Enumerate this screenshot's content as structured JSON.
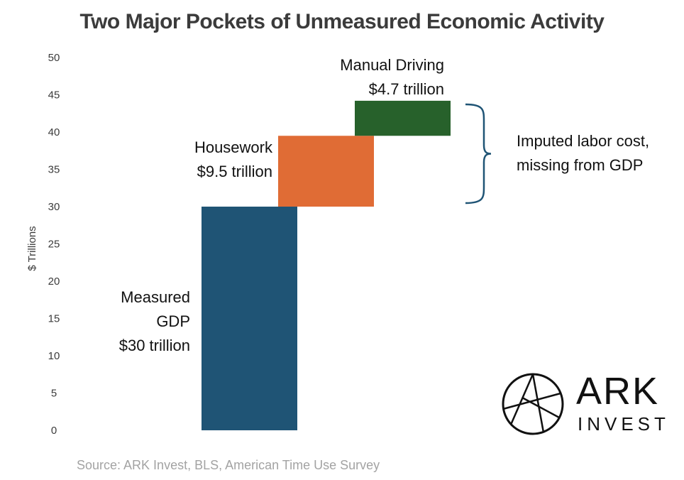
{
  "chart_data": {
    "type": "bar",
    "title": "Two Major Pockets of Unmeasured Economic Activity",
    "ylabel": "$ Trillions",
    "ylim": [
      0,
      50
    ],
    "yticks": [
      0,
      5,
      10,
      15,
      20,
      25,
      30,
      35,
      40,
      45,
      50
    ],
    "grid": false,
    "bars": [
      {
        "name": "Measured GDP",
        "label_lines": [
          "Measured",
          "GDP",
          "$30 trillion"
        ],
        "value_label": "$30 trillion",
        "base": 0,
        "value": 30,
        "color": "#1f5475"
      },
      {
        "name": "Housework",
        "label_lines": [
          "Housework",
          "$9.5 trillion"
        ],
        "value_label": "$9.5 trillion",
        "base": 30,
        "value": 9.5,
        "color": "#e06c35"
      },
      {
        "name": "Manual Driving",
        "label_lines": [
          "Manual Driving",
          "$4.7 trillion"
        ],
        "value_label": "$4.7 trillion",
        "base": 39.5,
        "value": 4.7,
        "color": "#27612b"
      }
    ],
    "bracket_annotation": [
      "Imputed labor cost,",
      "missing from GDP"
    ],
    "source": "Source: ARK Invest, BLS, American Time Use Survey"
  },
  "logo": {
    "main": "ARK",
    "sub": "INVEST"
  },
  "colors": {
    "title": "#3b3b3b",
    "axis_text": "#3b3b3b",
    "bracket": "#1f5475",
    "source": "#a3a3a3"
  }
}
